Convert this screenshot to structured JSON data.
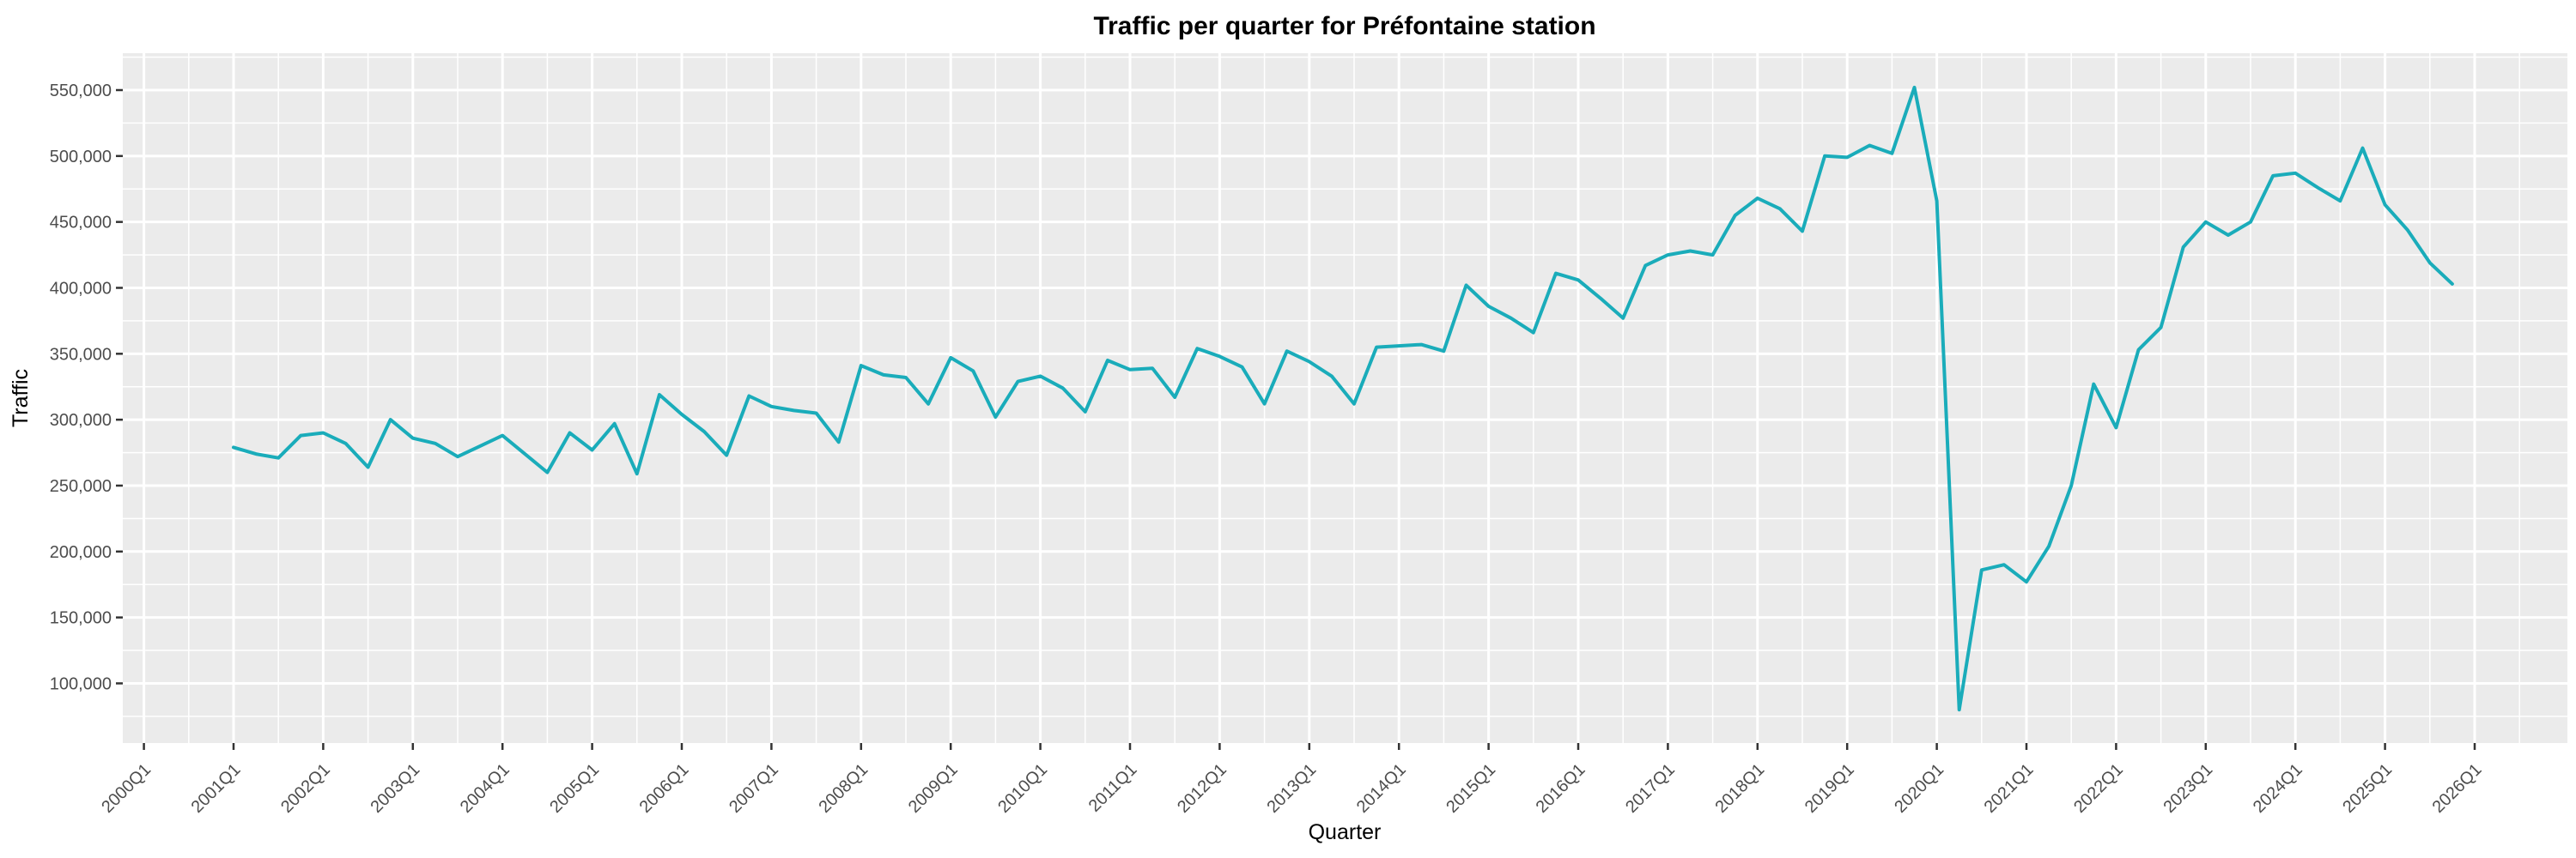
{
  "title": "Traffic per quarter for Préfontaine station",
  "x_axis": {
    "label": "Quarter",
    "tick_labels": [
      "2000Q1",
      "2001Q1",
      "2002Q1",
      "2003Q1",
      "2004Q1",
      "2005Q1",
      "2006Q1",
      "2007Q1",
      "2008Q1",
      "2009Q1",
      "2010Q1",
      "2011Q1",
      "2012Q1",
      "2013Q1",
      "2014Q1",
      "2015Q1",
      "2016Q1",
      "2017Q1",
      "2018Q1",
      "2019Q1",
      "2020Q1",
      "2021Q1",
      "2022Q1",
      "2023Q1",
      "2024Q1",
      "2025Q1",
      "2026Q1"
    ]
  },
  "y_axis": {
    "label": "Traffic",
    "tick_labels": [
      "100,000",
      "150,000",
      "200,000",
      "250,000",
      "300,000",
      "350,000",
      "400,000",
      "450,000",
      "500,000",
      "550,000"
    ],
    "tick_values": [
      100000,
      150000,
      200000,
      250000,
      300000,
      350000,
      400000,
      450000,
      500000,
      550000
    ]
  },
  "colors": {
    "line": "#1AACBA",
    "panel_bg": "#EBEBEB",
    "grid": "#FFFFFF",
    "tick_text": "#4D4D4D",
    "tick_mark": "#333333",
    "title_text": "#000000",
    "page_bg": "#FFFFFF"
  },
  "chart_data": {
    "type": "line",
    "title": "Traffic per quarter for Préfontaine station",
    "xlabel": "Quarter",
    "ylabel": "Traffic",
    "legend": "none",
    "grid": "major-and-minor-white-on-gray",
    "ylim": [
      56000,
      578000
    ],
    "yticks": [
      100000,
      150000,
      200000,
      250000,
      300000,
      350000,
      400000,
      450000,
      500000,
      550000
    ],
    "xticks": [
      "2000Q1",
      "2001Q1",
      "2002Q1",
      "2003Q1",
      "2004Q1",
      "2005Q1",
      "2006Q1",
      "2007Q1",
      "2008Q1",
      "2009Q1",
      "2010Q1",
      "2011Q1",
      "2012Q1",
      "2013Q1",
      "2014Q1",
      "2015Q1",
      "2016Q1",
      "2017Q1",
      "2018Q1",
      "2019Q1",
      "2020Q1",
      "2021Q1",
      "2022Q1",
      "2023Q1",
      "2024Q1",
      "2025Q1",
      "2026Q1"
    ],
    "x": [
      "2001Q1",
      "2001Q2",
      "2001Q3",
      "2001Q4",
      "2002Q1",
      "2002Q2",
      "2002Q3",
      "2002Q4",
      "2003Q1",
      "2003Q2",
      "2003Q3",
      "2003Q4",
      "2004Q1",
      "2004Q2",
      "2004Q3",
      "2004Q4",
      "2005Q1",
      "2005Q2",
      "2005Q3",
      "2005Q4",
      "2006Q1",
      "2006Q2",
      "2006Q3",
      "2006Q4",
      "2007Q1",
      "2007Q2",
      "2007Q3",
      "2007Q4",
      "2008Q1",
      "2008Q2",
      "2008Q3",
      "2008Q4",
      "2009Q1",
      "2009Q2",
      "2009Q3",
      "2009Q4",
      "2010Q1",
      "2010Q2",
      "2010Q3",
      "2010Q4",
      "2011Q1",
      "2011Q2",
      "2011Q3",
      "2011Q4",
      "2012Q1",
      "2012Q2",
      "2012Q3",
      "2012Q4",
      "2013Q1",
      "2013Q2",
      "2013Q3",
      "2013Q4",
      "2014Q1",
      "2014Q2",
      "2014Q3",
      "2014Q4",
      "2015Q1",
      "2015Q2",
      "2015Q3",
      "2015Q4",
      "2016Q1",
      "2016Q2",
      "2016Q3",
      "2016Q4",
      "2017Q1",
      "2017Q2",
      "2017Q3",
      "2017Q4",
      "2018Q1",
      "2018Q2",
      "2018Q3",
      "2018Q4",
      "2019Q1",
      "2019Q2",
      "2019Q3",
      "2019Q4",
      "2020Q1",
      "2020Q2",
      "2020Q3",
      "2020Q4",
      "2021Q1",
      "2021Q2",
      "2021Q3",
      "2021Q4",
      "2022Q1",
      "2022Q2",
      "2022Q3",
      "2022Q4",
      "2023Q1",
      "2023Q2",
      "2023Q3",
      "2023Q4",
      "2024Q1",
      "2024Q2",
      "2024Q3",
      "2024Q4",
      "2025Q1",
      "2025Q2",
      "2025Q3",
      "2025Q4"
    ],
    "values": [
      279000,
      274000,
      271000,
      288000,
      290000,
      282000,
      264000,
      300000,
      286000,
      282000,
      272000,
      280000,
      288000,
      274000,
      260000,
      290000,
      277000,
      297000,
      259000,
      319000,
      304000,
      291000,
      273000,
      318000,
      310000,
      307000,
      305000,
      283000,
      341000,
      334000,
      332000,
      312000,
      347000,
      337000,
      302000,
      329000,
      333000,
      324000,
      306000,
      345000,
      338000,
      339000,
      317000,
      354000,
      348000,
      340000,
      312000,
      352000,
      344000,
      333000,
      312000,
      355000,
      356000,
      357000,
      352000,
      402000,
      386000,
      377000,
      366000,
      411000,
      406000,
      392000,
      377000,
      417000,
      425000,
      428000,
      425000,
      455000,
      468000,
      460000,
      443000,
      500000,
      499000,
      508000,
      502000,
      552000,
      466000,
      80000,
      186000,
      190000,
      177000,
      204000,
      250000,
      327000,
      294000,
      353000,
      370000,
      431000,
      450000,
      440000,
      450000,
      485000,
      487000,
      476000,
      466000,
      506000,
      463000,
      444000,
      419000,
      403000
    ]
  }
}
